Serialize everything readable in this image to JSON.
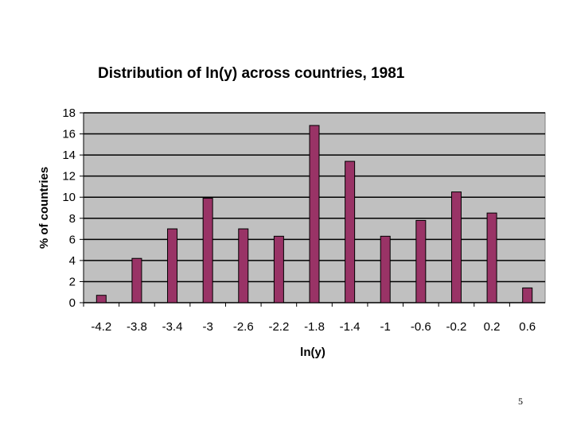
{
  "page": {
    "number": "5"
  },
  "chart_data": {
    "type": "bar",
    "title": "Distribution of ln(y) across countries, 1981",
    "xlabel": "ln(y)",
    "ylabel": "% of countries",
    "categories": [
      "-4.2",
      "-3.8",
      "-3.4",
      "-3",
      "-2.6",
      "-2.2",
      "-1.8",
      "-1.4",
      "-1",
      "-0.6",
      "-0.2",
      "0.2",
      "0.6"
    ],
    "values": [
      0.7,
      4.2,
      7.0,
      9.9,
      7.0,
      6.3,
      16.8,
      13.4,
      6.3,
      7.8,
      10.5,
      8.5,
      1.4
    ],
    "ylim": [
      0,
      18
    ],
    "yticks": [
      0,
      2,
      4,
      6,
      8,
      10,
      12,
      14,
      16,
      18
    ],
    "grid": true,
    "legend": "none",
    "colors": {
      "bar": "#993366",
      "plot_background": "#c0c0c0",
      "gridline": "#000000"
    }
  }
}
